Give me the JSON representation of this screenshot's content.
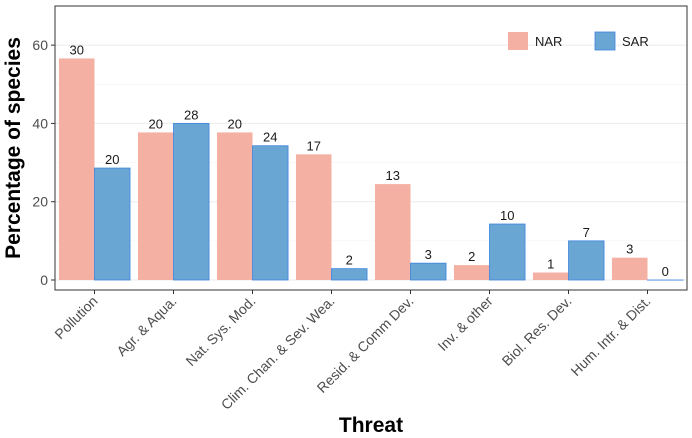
{
  "chart_data": {
    "type": "bar",
    "title": "",
    "xlabel": "Threat",
    "ylabel": "Percentage of species",
    "ylim": [
      0,
      70
    ],
    "yticks": [
      0,
      20,
      40,
      60
    ],
    "grid": true,
    "legend_position": "top-right",
    "categories": [
      "Pollution",
      "Agr. & Aqua.",
      "Nat. Sys. Mod.",
      "Clim. Chan. & Sev. Wea.",
      "Resid. & Comm Dev.",
      "Inv. & other",
      "Biol. Res. Dev.",
      "Hum. Intr. & Dist."
    ],
    "series": [
      {
        "name": "NAR",
        "color": "#f4b0a2",
        "values": [
          56.6,
          37.7,
          37.7,
          32.1,
          24.5,
          3.8,
          1.9,
          5.7
        ],
        "labels": [
          "30",
          "20",
          "20",
          "17",
          "13",
          "2",
          "1",
          "3"
        ]
      },
      {
        "name": "SAR",
        "color": "#6aa6d3",
        "edge": "#3d84e0",
        "values": [
          28.6,
          40.0,
          34.3,
          2.9,
          4.3,
          14.3,
          10.0,
          0.0
        ],
        "labels": [
          "20",
          "28",
          "24",
          "2",
          "3",
          "10",
          "7",
          "0"
        ]
      }
    ]
  }
}
